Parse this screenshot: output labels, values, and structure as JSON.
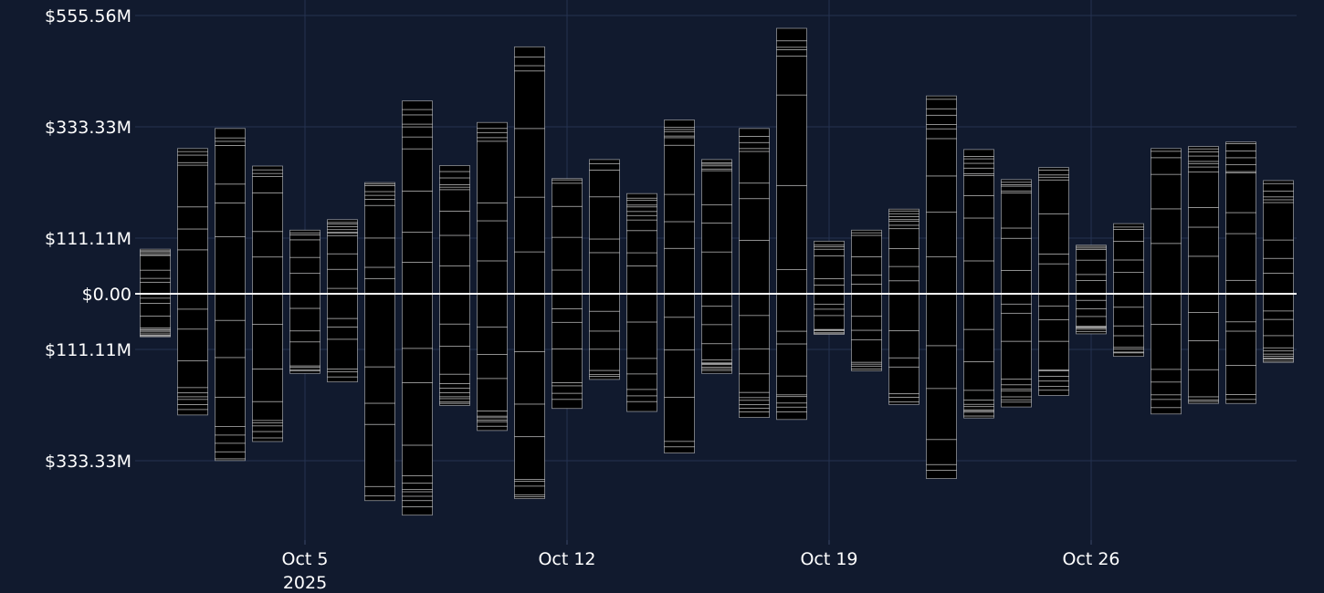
{
  "chart_data": {
    "type": "bar",
    "subtype": "stacked-diverging",
    "title": "",
    "xlabel": "",
    "ylabel": "",
    "ylim": [
      -480,
      560
    ],
    "y_ticks": [
      {
        "value": 555.56,
        "label": "$555.56M"
      },
      {
        "value": 333.33,
        "label": "$333.33M"
      },
      {
        "value": 111.11,
        "label": "$111.11M"
      },
      {
        "value": 0,
        "label": "$0.00"
      },
      {
        "value": -111.11,
        "label": "$111.11M"
      },
      {
        "value": -333.33,
        "label": "$333.33M"
      }
    ],
    "x_ticks": [
      {
        "day": 5,
        "label": "Oct 5",
        "sublabel": "2025"
      },
      {
        "day": 12,
        "label": "Oct 12",
        "sublabel": ""
      },
      {
        "day": 19,
        "label": "Oct 19",
        "sublabel": ""
      },
      {
        "day": 26,
        "label": "Oct 26",
        "sublabel": ""
      }
    ],
    "categories": [
      "Oct 1",
      "Oct 2",
      "Oct 3",
      "Oct 4",
      "Oct 5",
      "Oct 6",
      "Oct 7",
      "Oct 8",
      "Oct 9",
      "Oct 10",
      "Oct 11",
      "Oct 12",
      "Oct 13",
      "Oct 14",
      "Oct 15",
      "Oct 16",
      "Oct 17",
      "Oct 18",
      "Oct 19",
      "Oct 20",
      "Oct 21",
      "Oct 22",
      "Oct 23",
      "Oct 24",
      "Oct 25",
      "Oct 26",
      "Oct 27",
      "Oct 28",
      "Oct 29",
      "Oct 30",
      "Oct 31"
    ],
    "series": [
      {
        "name": "positive",
        "unit": "$M",
        "values": [
          89,
          290,
          330,
          255,
          127,
          148,
          222,
          385,
          256,
          342,
          493,
          230,
          268,
          200,
          347,
          268,
          330,
          530,
          105,
          127,
          169,
          395,
          288,
          228,
          252,
          97,
          140,
          290,
          294,
          303,
          226
        ]
      },
      {
        "name": "negative",
        "unit": "$M",
        "values": [
          -86,
          -242,
          -333,
          -295,
          -159,
          -176,
          -413,
          -442,
          -223,
          -273,
          -409,
          -229,
          -171,
          -235,
          -318,
          -159,
          -247,
          -251,
          -81,
          -154,
          -221,
          -369,
          -248,
          -226,
          -203,
          -80,
          -125,
          -240,
          -219,
          -219,
          -137
        ]
      }
    ],
    "colors": {
      "positive_start": "#2a4dfb",
      "positive_end": "#93a8ff",
      "negative_start": "#fd2e2e",
      "negative_end": "#ff9c9c",
      "background": "#111a2e",
      "grid": "#253250",
      "zero_line": "#ffffff"
    }
  }
}
